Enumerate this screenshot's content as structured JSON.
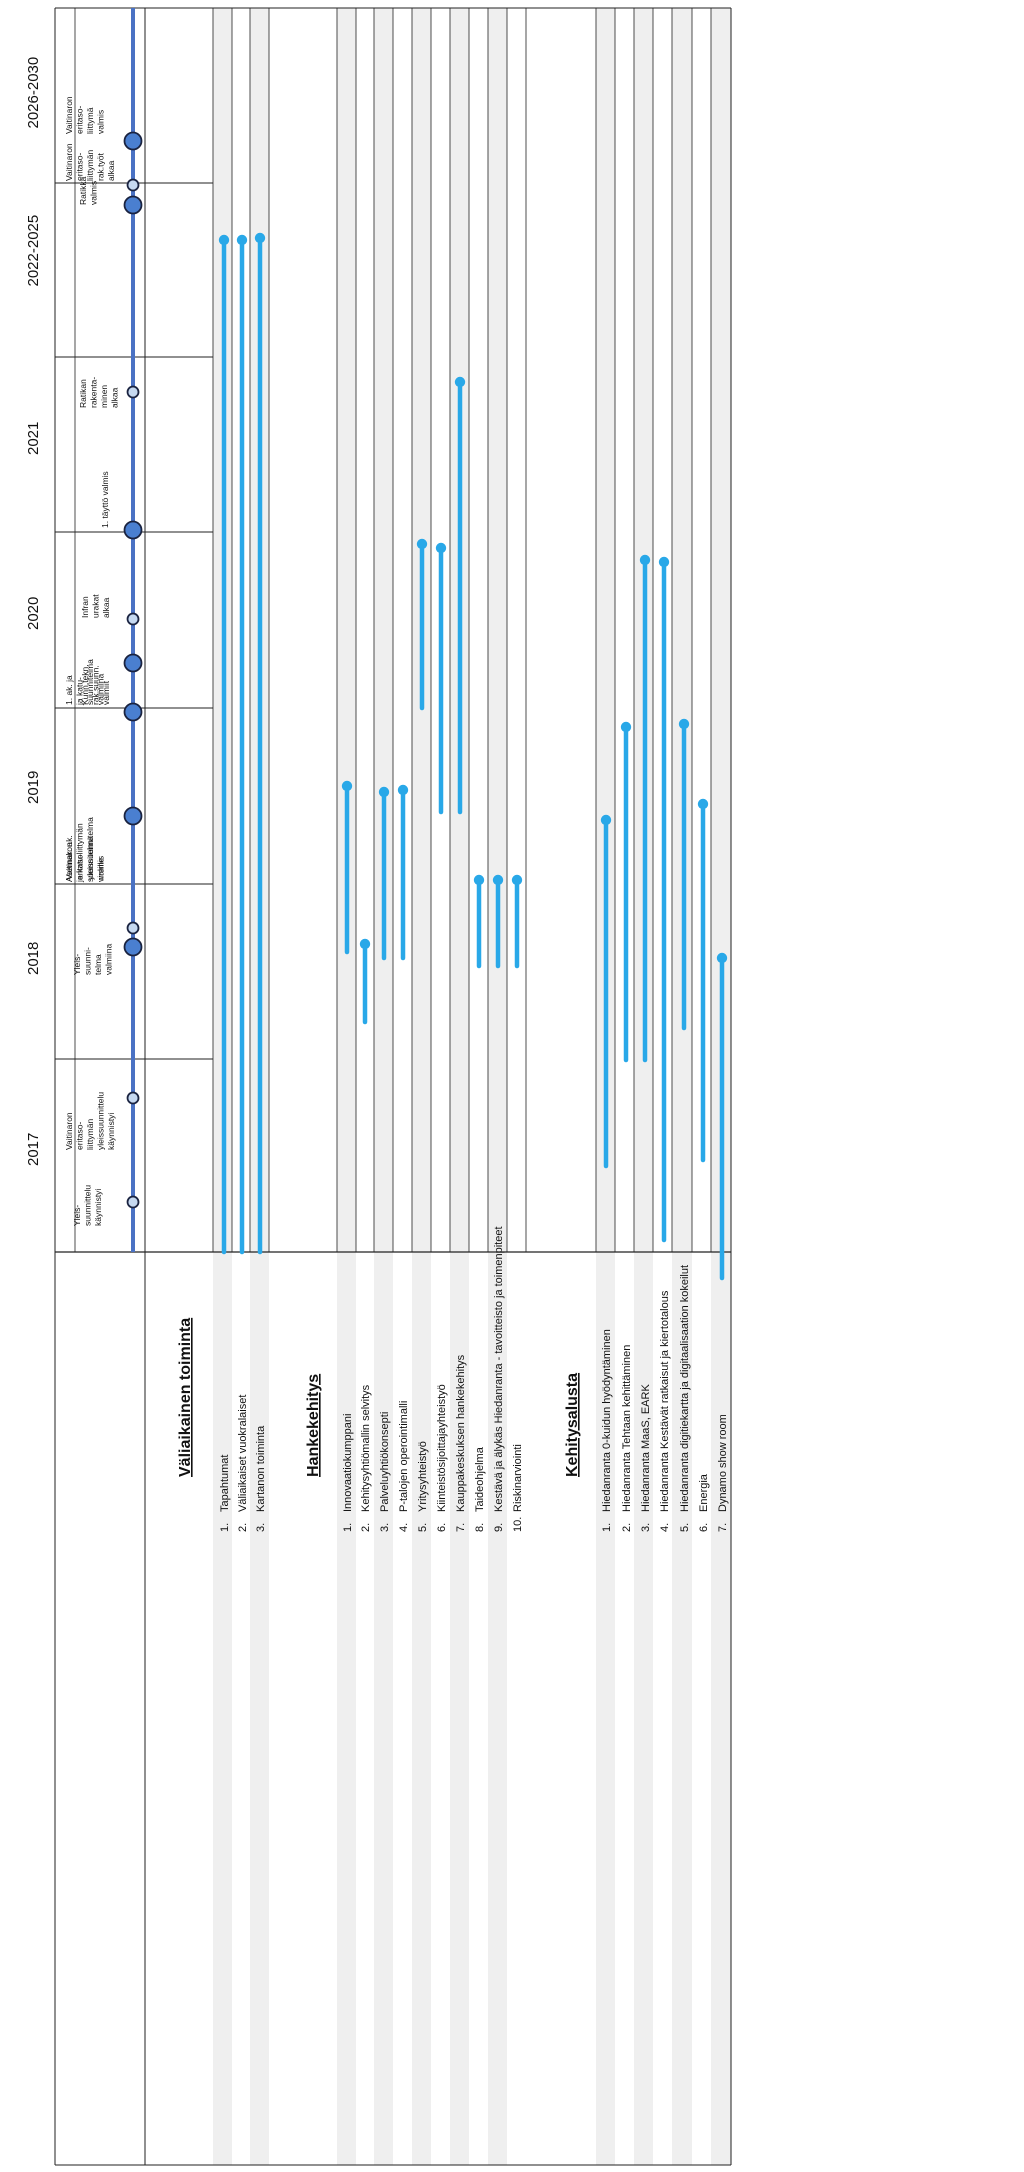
{
  "years": [
    "2017",
    "2018",
    "2019",
    "2020",
    "2021",
    "2022-2025",
    "2026-2030"
  ],
  "sections": {
    "valiaikainen": {
      "title": "Väliaikainen toiminta",
      "items": [
        {
          "num": "1.",
          "label": "Tapahtumat"
        },
        {
          "num": "2.",
          "label": "Väliaikaiset vuokralaiset"
        },
        {
          "num": "3.",
          "label": "Kartanon toiminta"
        }
      ]
    },
    "hankekehitys": {
      "title": "Hankekehitys",
      "items": [
        {
          "num": "1.",
          "label": "Innovaatiokumppani"
        },
        {
          "num": "2.",
          "label": "Kehitysyhtiömallin selvitys"
        },
        {
          "num": "3.",
          "label": "Palveluyhtiökonsepti"
        },
        {
          "num": "4.",
          "label": "P-talojen operointimalli"
        },
        {
          "num": "5.",
          "label": "Yritysyhteistyö"
        },
        {
          "num": "6.",
          "label": "Kiinteistösijoittajayhteistyö"
        },
        {
          "num": "7.",
          "label": "Kauppakeskuksen hankekehitys"
        },
        {
          "num": "8.",
          "label": "Taideohjelma"
        },
        {
          "num": "9.",
          "label": "Kestävä ja älykäs Hiedanranta - tavoitteisto ja toimenpiteet"
        },
        {
          "num": "10.",
          "label": "Riskinarviointi"
        }
      ]
    },
    "kehitysalusta": {
      "title": "Kehitysalusta",
      "items": [
        {
          "num": "1.",
          "label": "Hiedanranta 0-kuidun hyödyntäminen"
        },
        {
          "num": "2.",
          "label": "Hiedanranta Tehtaan kehittäminen"
        },
        {
          "num": "3.",
          "label": "Hiedanranta MaaS, EARK"
        },
        {
          "num": "4.",
          "label": "Hiedanranta Kestävät ratkaisut ja kiertotalous"
        },
        {
          "num": "5.",
          "label": "Hiedanranta digitiekartta ja digitaalisaation kokeilut"
        },
        {
          "num": "6.",
          "label": "Energia"
        },
        {
          "num": "7.",
          "label": "Dynamo show room"
        }
      ]
    }
  },
  "milestones": [
    {
      "text": [
        "Yleis-",
        "suunnittelu",
        "käynnistyi"
      ]
    },
    {
      "text": [
        "Vaitinaron",
        "eritaso-",
        "liittymän",
        "yleissuunnittelu",
        "käynnistyi"
      ]
    },
    {
      "text": [
        "Yleis-",
        "suunni-",
        "telma",
        "valmiina"
      ]
    },
    {
      "text": [
        "Asemak. ak.",
        "ja katu-",
        "suunnitelma",
        "vireille"
      ]
    },
    {
      "text": [
        "Vaitinaron",
        "eritasoliittymän",
        "yleissuunnitelma",
        "valmis"
      ]
    },
    {
      "text": [
        "1. ak. ja",
        "ja katu-",
        "suunnitelma",
        "valmiina"
      ]
    },
    {
      "text": [
        "Kunn.tekn.",
        "rak.suunn.",
        "valmiit"
      ]
    },
    {
      "text": [
        "Infran",
        "urakat",
        "alkaa"
      ]
    },
    {
      "text": [
        "1. täyttö valmis"
      ]
    },
    {
      "text": [
        "Ratikan",
        "rakenta-",
        "minen",
        "alkaa"
      ]
    },
    {
      "text": [
        "Ratikka",
        "valmis"
      ]
    },
    {
      "text": [
        "Vaitinaron",
        "eritaso-",
        "liittymän",
        "rak.työt",
        "alkaa"
      ]
    },
    {
      "text": [
        "Vaitinaron",
        "eritaso-",
        "liittymä",
        "valmis"
      ]
    }
  ],
  "colors": {
    "bar": "#29a8e8",
    "axis": "#4a72c4",
    "milestone_big": "#4a7fd0",
    "milestone_small": "#c6d9f1",
    "band": "#efefef"
  }
}
